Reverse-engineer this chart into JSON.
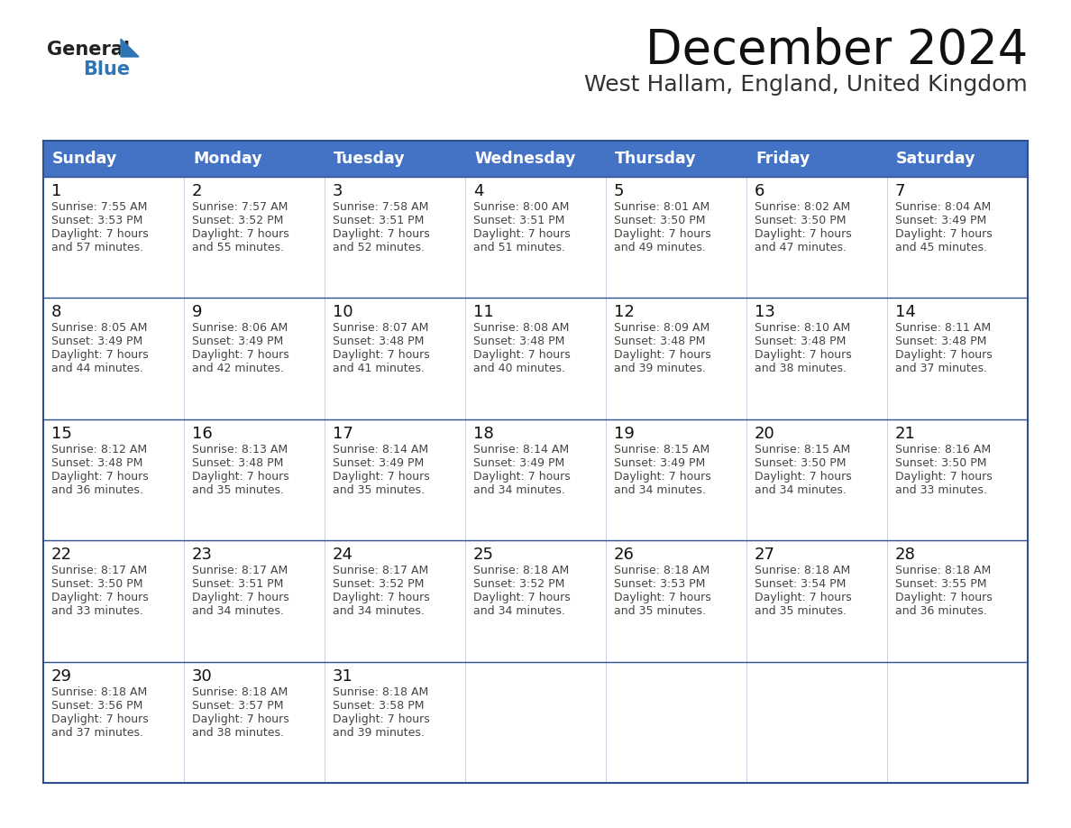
{
  "title": "December 2024",
  "subtitle": "West Hallam, England, United Kingdom",
  "header_bg_color": "#4472C4",
  "header_text_color": "#FFFFFF",
  "cell_bg": "#FFFFFF",
  "row_separator_color": "#2F4F8F",
  "col_separator_color": "#C0C8D8",
  "outer_border_color": "#2F4F8F",
  "day_names": [
    "Sunday",
    "Monday",
    "Tuesday",
    "Wednesday",
    "Thursday",
    "Friday",
    "Saturday"
  ],
  "title_color": "#111111",
  "subtitle_color": "#333333",
  "day_number_color": "#111111",
  "cell_text_color": "#444444",
  "logo_general_color": "#222222",
  "logo_blue_color": "#2E75B6",
  "calendar": [
    [
      {
        "day": 1,
        "sunrise": "7:55 AM",
        "sunset": "3:53 PM",
        "daylight": "7 hours and 57 minutes."
      },
      {
        "day": 2,
        "sunrise": "7:57 AM",
        "sunset": "3:52 PM",
        "daylight": "7 hours and 55 minutes."
      },
      {
        "day": 3,
        "sunrise": "7:58 AM",
        "sunset": "3:51 PM",
        "daylight": "7 hours and 52 minutes."
      },
      {
        "day": 4,
        "sunrise": "8:00 AM",
        "sunset": "3:51 PM",
        "daylight": "7 hours and 51 minutes."
      },
      {
        "day": 5,
        "sunrise": "8:01 AM",
        "sunset": "3:50 PM",
        "daylight": "7 hours and 49 minutes."
      },
      {
        "day": 6,
        "sunrise": "8:02 AM",
        "sunset": "3:50 PM",
        "daylight": "7 hours and 47 minutes."
      },
      {
        "day": 7,
        "sunrise": "8:04 AM",
        "sunset": "3:49 PM",
        "daylight": "7 hours and 45 minutes."
      }
    ],
    [
      {
        "day": 8,
        "sunrise": "8:05 AM",
        "sunset": "3:49 PM",
        "daylight": "7 hours and 44 minutes."
      },
      {
        "day": 9,
        "sunrise": "8:06 AM",
        "sunset": "3:49 PM",
        "daylight": "7 hours and 42 minutes."
      },
      {
        "day": 10,
        "sunrise": "8:07 AM",
        "sunset": "3:48 PM",
        "daylight": "7 hours and 41 minutes."
      },
      {
        "day": 11,
        "sunrise": "8:08 AM",
        "sunset": "3:48 PM",
        "daylight": "7 hours and 40 minutes."
      },
      {
        "day": 12,
        "sunrise": "8:09 AM",
        "sunset": "3:48 PM",
        "daylight": "7 hours and 39 minutes."
      },
      {
        "day": 13,
        "sunrise": "8:10 AM",
        "sunset": "3:48 PM",
        "daylight": "7 hours and 38 minutes."
      },
      {
        "day": 14,
        "sunrise": "8:11 AM",
        "sunset": "3:48 PM",
        "daylight": "7 hours and 37 minutes."
      }
    ],
    [
      {
        "day": 15,
        "sunrise": "8:12 AM",
        "sunset": "3:48 PM",
        "daylight": "7 hours and 36 minutes."
      },
      {
        "day": 16,
        "sunrise": "8:13 AM",
        "sunset": "3:48 PM",
        "daylight": "7 hours and 35 minutes."
      },
      {
        "day": 17,
        "sunrise": "8:14 AM",
        "sunset": "3:49 PM",
        "daylight": "7 hours and 35 minutes."
      },
      {
        "day": 18,
        "sunrise": "8:14 AM",
        "sunset": "3:49 PM",
        "daylight": "7 hours and 34 minutes."
      },
      {
        "day": 19,
        "sunrise": "8:15 AM",
        "sunset": "3:49 PM",
        "daylight": "7 hours and 34 minutes."
      },
      {
        "day": 20,
        "sunrise": "8:15 AM",
        "sunset": "3:50 PM",
        "daylight": "7 hours and 34 minutes."
      },
      {
        "day": 21,
        "sunrise": "8:16 AM",
        "sunset": "3:50 PM",
        "daylight": "7 hours and 33 minutes."
      }
    ],
    [
      {
        "day": 22,
        "sunrise": "8:17 AM",
        "sunset": "3:50 PM",
        "daylight": "7 hours and 33 minutes."
      },
      {
        "day": 23,
        "sunrise": "8:17 AM",
        "sunset": "3:51 PM",
        "daylight": "7 hours and 34 minutes."
      },
      {
        "day": 24,
        "sunrise": "8:17 AM",
        "sunset": "3:52 PM",
        "daylight": "7 hours and 34 minutes."
      },
      {
        "day": 25,
        "sunrise": "8:18 AM",
        "sunset": "3:52 PM",
        "daylight": "7 hours and 34 minutes."
      },
      {
        "day": 26,
        "sunrise": "8:18 AM",
        "sunset": "3:53 PM",
        "daylight": "7 hours and 35 minutes."
      },
      {
        "day": 27,
        "sunrise": "8:18 AM",
        "sunset": "3:54 PM",
        "daylight": "7 hours and 35 minutes."
      },
      {
        "day": 28,
        "sunrise": "8:18 AM",
        "sunset": "3:55 PM",
        "daylight": "7 hours and 36 minutes."
      }
    ],
    [
      {
        "day": 29,
        "sunrise": "8:18 AM",
        "sunset": "3:56 PM",
        "daylight": "7 hours and 37 minutes."
      },
      {
        "day": 30,
        "sunrise": "8:18 AM",
        "sunset": "3:57 PM",
        "daylight": "7 hours and 38 minutes."
      },
      {
        "day": 31,
        "sunrise": "8:18 AM",
        "sunset": "3:58 PM",
        "daylight": "7 hours and 39 minutes."
      },
      null,
      null,
      null,
      null
    ]
  ]
}
